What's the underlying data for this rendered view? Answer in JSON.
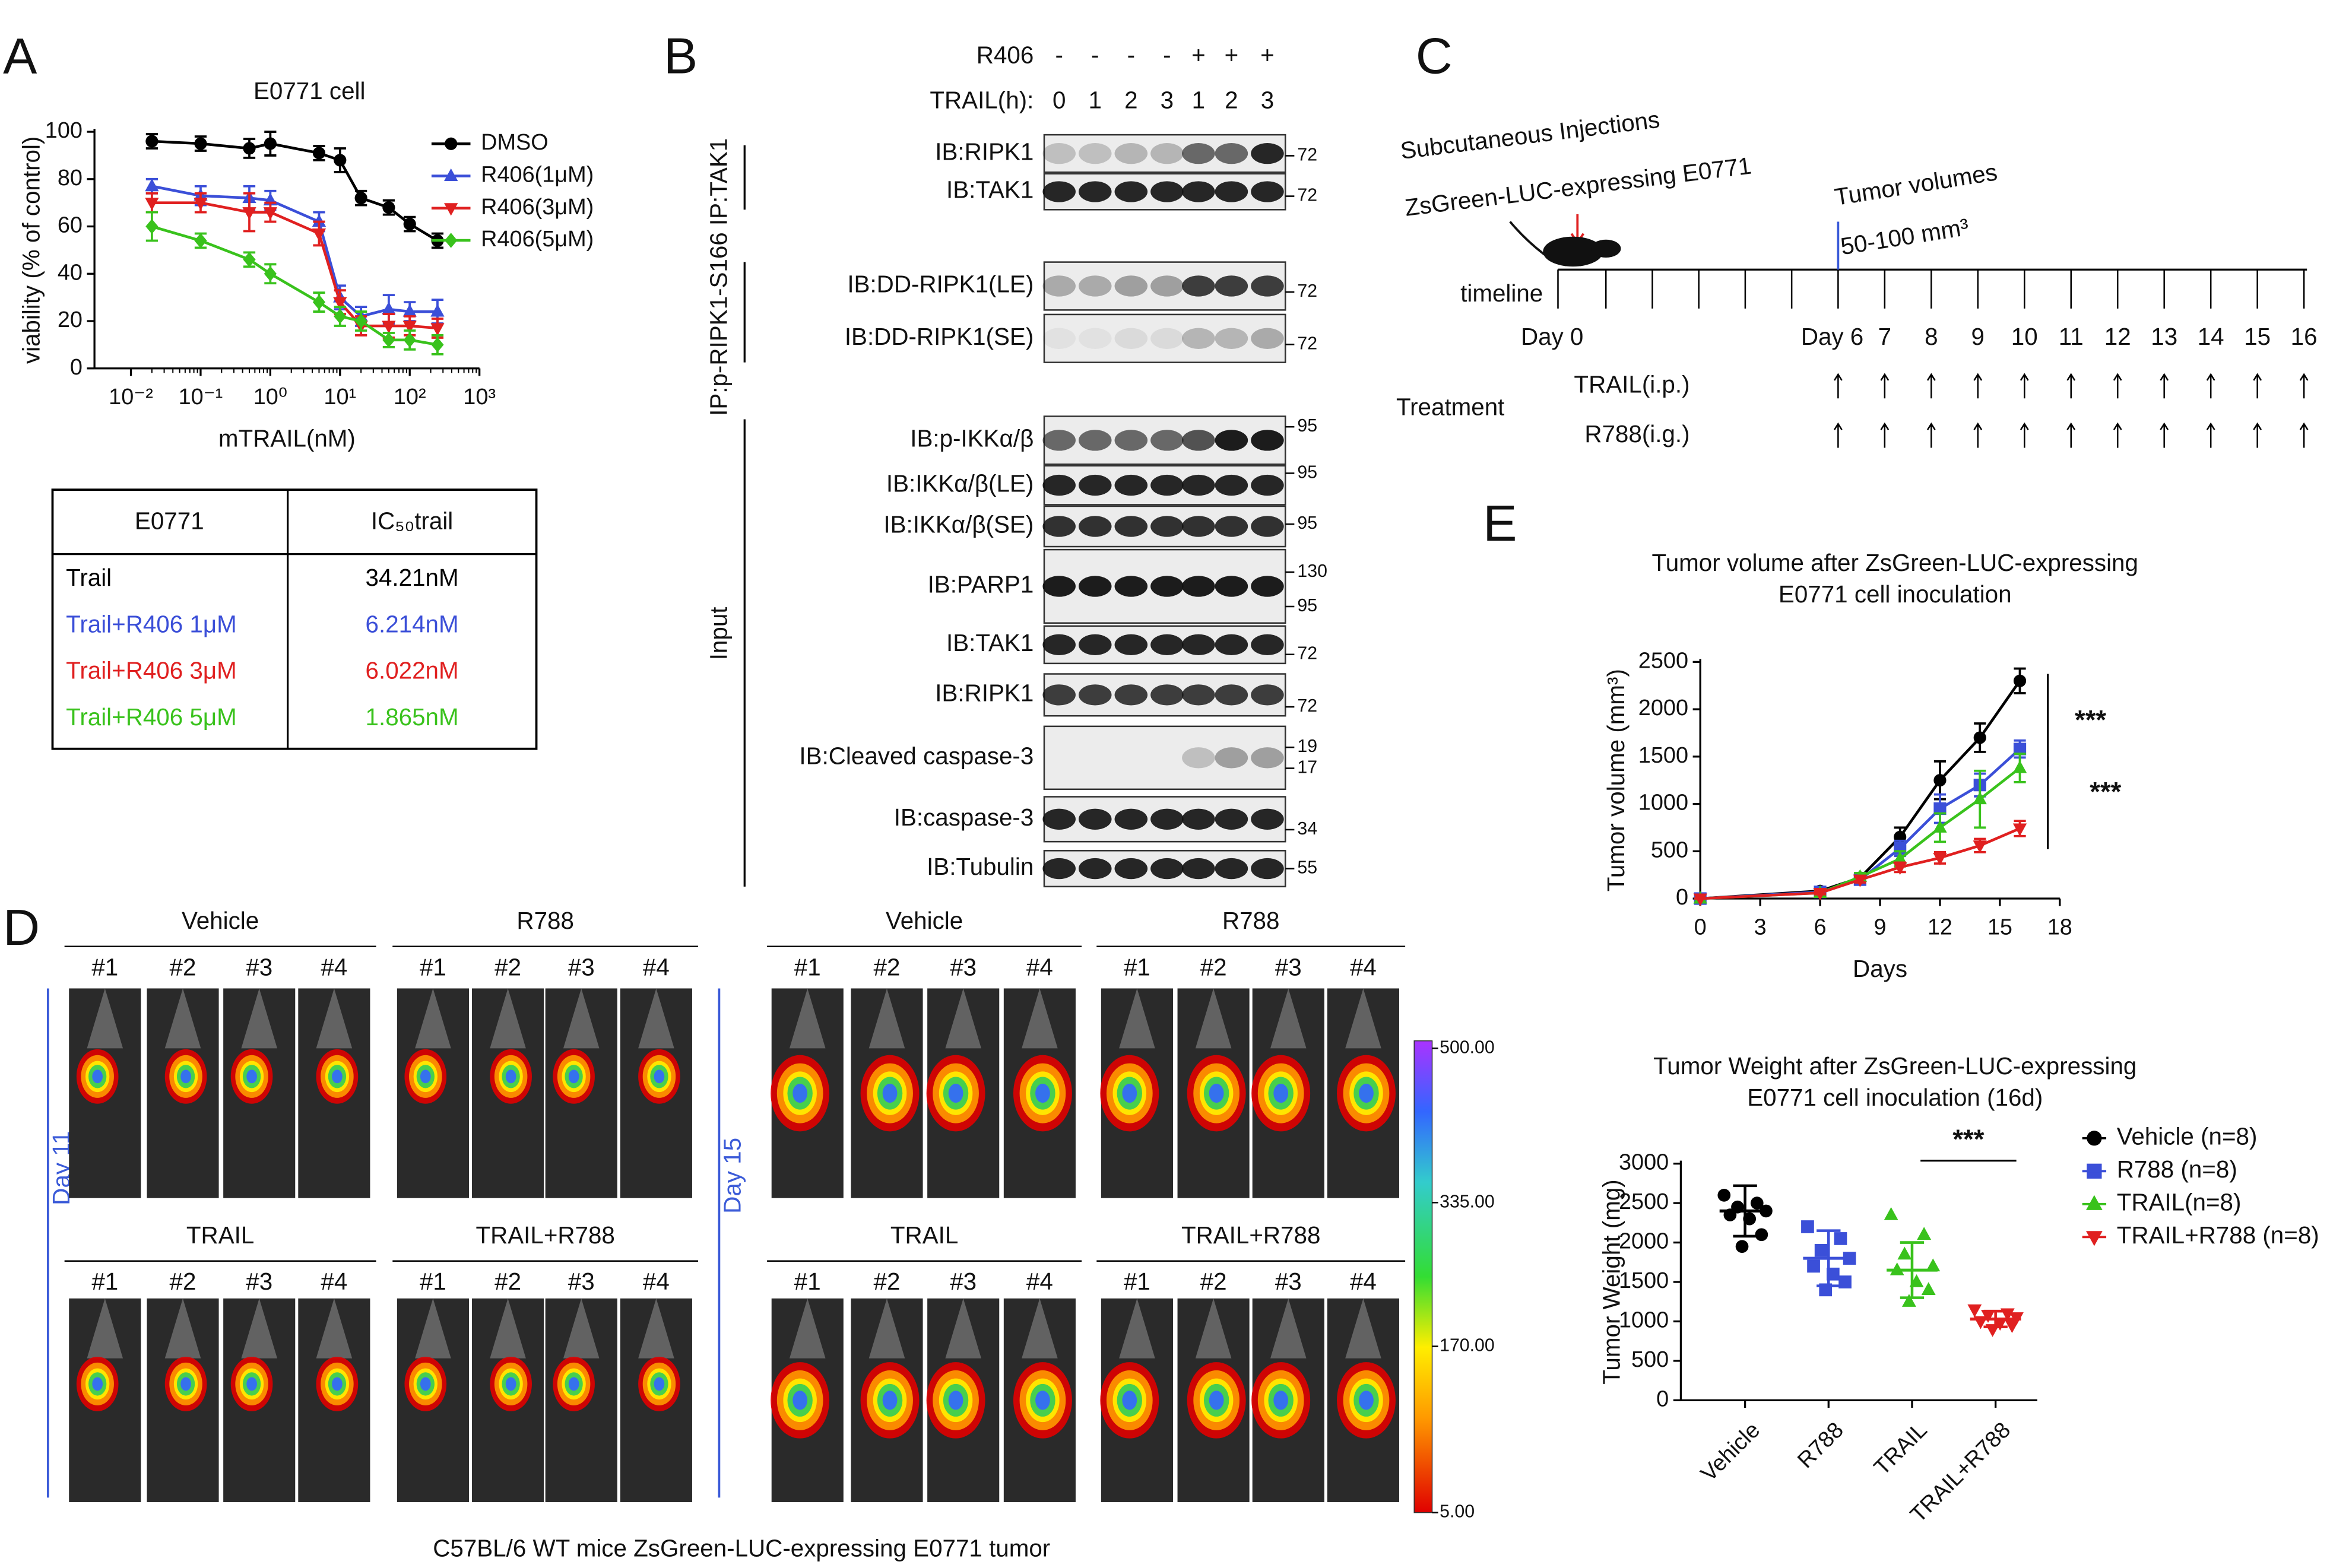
{
  "panel_labels": [
    "A",
    "B",
    "C",
    "D",
    "E"
  ],
  "chart_data": [
    {
      "type": "line",
      "title": "E0771 cell",
      "x_label": "mTRAIL(nM)",
      "y_label": "viability (% of control)",
      "x_scale": "log",
      "xlim": [
        0.003,
        1000
      ],
      "xticks": [
        {
          "value": 0.01,
          "label": "10⁻²"
        },
        {
          "value": 0.1,
          "label": "10⁻¹"
        },
        {
          "value": 1,
          "label": "10⁰"
        },
        {
          "value": 10,
          "label": "10¹"
        },
        {
          "value": 100,
          "label": "10²"
        },
        {
          "value": 1000,
          "label": "10³"
        }
      ],
      "ylim": [
        0,
        100
      ],
      "yticks": [
        0,
        20,
        40,
        60,
        80,
        100
      ],
      "legend": "upper right",
      "x": [
        0.02,
        0.1,
        0.5,
        1,
        5,
        10,
        20,
        50,
        100,
        250
      ],
      "series": [
        {
          "name": "DMSO",
          "color": "#000000",
          "marker": "circle",
          "values": [
            96,
            95,
            93,
            95,
            91,
            88,
            72,
            68,
            61,
            54
          ],
          "errors": [
            3,
            3,
            4,
            5,
            3,
            5,
            3,
            3,
            3,
            3
          ]
        },
        {
          "name": "R406(1μM)",
          "color": "#3b4fd8",
          "marker": "triangle",
          "values": [
            77,
            73,
            72,
            71,
            62,
            30,
            22,
            25,
            24,
            24
          ],
          "errors": [
            3,
            4,
            5,
            4,
            4,
            5,
            4,
            6,
            4,
            5
          ]
        },
        {
          "name": "R406(3μM)",
          "color": "#e02020",
          "marker": "triangle-down",
          "values": [
            70,
            70,
            66,
            66,
            57,
            28,
            18,
            18,
            18,
            17
          ],
          "errors": [
            4,
            4,
            8,
            4,
            5,
            5,
            4,
            5,
            4,
            4
          ]
        },
        {
          "name": "R406(5μM)",
          "color": "#39c21c",
          "marker": "diamond",
          "values": [
            60,
            54,
            46,
            40,
            28,
            22,
            20,
            12,
            12,
            10
          ],
          "errors": [
            6,
            3,
            3,
            4,
            4,
            4,
            4,
            3,
            4,
            4
          ]
        }
      ]
    },
    {
      "type": "line",
      "title": [
        "Tumor volume after ZsGreen-LUC-expressing",
        "E0771 cell inoculation"
      ],
      "x_label": "Days",
      "y_label": "Tumor volume (mm³)",
      "xlim": [
        0,
        18
      ],
      "xticks": [
        0,
        3,
        6,
        9,
        12,
        15,
        18
      ],
      "ylim": [
        0,
        2500
      ],
      "yticks": [
        0,
        500,
        1000,
        1500,
        2000,
        2500
      ],
      "x": [
        0,
        6,
        8,
        10,
        12,
        14,
        16
      ],
      "series": [
        {
          "color": "#000000",
          "marker": "circle",
          "values": [
            0,
            80,
            220,
            650,
            1250,
            1700,
            2300
          ],
          "errors": [
            0,
            20,
            50,
            100,
            200,
            150,
            130
          ]
        },
        {
          "color": "#3b4fd8",
          "marker": "square",
          "values": [
            0,
            70,
            200,
            530,
            950,
            1200,
            1580
          ],
          "errors": [
            0,
            20,
            40,
            80,
            150,
            120,
            90
          ]
        },
        {
          "color": "#39c21c",
          "marker": "triangle",
          "values": [
            0,
            60,
            230,
            420,
            750,
            1050,
            1380
          ],
          "errors": [
            0,
            20,
            40,
            80,
            150,
            300,
            150
          ]
        },
        {
          "color": "#e02020",
          "marker": "triangle-down",
          "values": [
            0,
            60,
            200,
            330,
            430,
            560,
            740
          ],
          "errors": [
            0,
            15,
            30,
            50,
            60,
            70,
            80
          ]
        }
      ],
      "annotations": [
        "***",
        "***"
      ]
    },
    {
      "type": "scatter",
      "title": [
        "Tumor Weight after ZsGreen-LUC-expressing",
        "E0771 cell inoculation (16d)"
      ],
      "y_label": "Tumor Weight (mg)",
      "categories": [
        "Vehicle",
        "R788",
        "TRAIL",
        "TRAIL+R788"
      ],
      "ylim": [
        0,
        3000
      ],
      "yticks": [
        0,
        500,
        1000,
        1500,
        2000,
        2500,
        3000
      ],
      "legend": "right",
      "series": [
        {
          "name": "Vehicle (n=8)",
          "color": "#000000",
          "marker": "circle",
          "values": [
            2600,
            2500,
            2450,
            2400,
            2350,
            2300,
            2100,
            1950
          ],
          "mean": 2400,
          "sd": 320
        },
        {
          "name": "R788 (n=8)",
          "color": "#3b4fd8",
          "marker": "square",
          "values": [
            2200,
            2050,
            1900,
            1800,
            1700,
            1600,
            1500,
            1400
          ],
          "mean": 1800,
          "sd": 350
        },
        {
          "name": "TRAIL(n=8)",
          "color": "#39c21c",
          "marker": "triangle",
          "values": [
            2350,
            2100,
            1850,
            1700,
            1650,
            1500,
            1400,
            1250
          ],
          "mean": 1650,
          "sd": 350
        },
        {
          "name": "TRAIL+R788 (n=8)",
          "color": "#e02020",
          "marker": "triangle-down",
          "values": [
            1150,
            1100,
            1080,
            1050,
            1000,
            980,
            950,
            900
          ],
          "mean": 1030,
          "sd": 100
        }
      ],
      "annotations": [
        "***"
      ]
    }
  ],
  "table": {
    "header": [
      "E0771",
      "IC₅₀trail"
    ],
    "rows": [
      [
        "Trail",
        "34.21nM"
      ],
      [
        "Trail+R406 1μM",
        "6.214nM"
      ],
      [
        "Trail+R406 3μM",
        "6.022nM"
      ],
      [
        "Trail+R406 5μM",
        "1.865nM"
      ]
    ],
    "row_colors": [
      "#000000",
      "#3b4fd8",
      "#e02020",
      "#39c21c"
    ]
  },
  "blot": {
    "conditions": [
      {
        "label": "R406",
        "lanes": [
          "-",
          "-",
          "-",
          "-",
          "+",
          "+",
          "+"
        ]
      },
      {
        "label": "TRAIL(h):",
        "lanes": [
          "0",
          "1",
          "2",
          "3",
          "1",
          "2",
          "3"
        ]
      }
    ],
    "side_labels": [
      "IP:p-RIPK1-S166 IP:TAK1",
      "Input"
    ],
    "panels": [
      {
        "label": "IB:RIPK1",
        "mw": [
          "72"
        ]
      },
      {
        "label": "IB:TAK1",
        "mw": [
          "72"
        ]
      },
      {
        "label": "IB:DD-RIPK1(LE)",
        "mw": [
          "72"
        ]
      },
      {
        "label": "IB:DD-RIPK1(SE)",
        "mw": [
          "72"
        ]
      },
      {
        "label": "IB:p-IKKα/β",
        "mw": [
          "95"
        ]
      },
      {
        "label": "IB:IKKα/β(LE)",
        "mw": [
          "95"
        ]
      },
      {
        "label": "IB:IKKα/β(SE)",
        "mw": [
          "95"
        ]
      },
      {
        "label": "IB:PARP1",
        "mw": [
          "130",
          "95"
        ]
      },
      {
        "label": "IB:TAK1",
        "mw": [
          "72"
        ]
      },
      {
        "label": "IB:RIPK1",
        "mw": [
          "72"
        ]
      },
      {
        "label": "IB:Cleaved caspase-3",
        "mw": [
          "19",
          "17"
        ]
      },
      {
        "label": "IB:caspase-3",
        "mw": [
          "34"
        ]
      },
      {
        "label": "IB:Tubulin",
        "mw": [
          "55"
        ]
      }
    ]
  },
  "schedule": {
    "injection": [
      "Subcutaneous Injections",
      "ZsGreen-LUC-expressing E0771"
    ],
    "tumor_volume": [
      "Tumor volumes",
      "50-100 mm³"
    ],
    "timeline_label": "timeline",
    "days": [
      "Day 0",
      "Day 6",
      "7",
      "8",
      "9",
      "10",
      "11",
      "12",
      "13",
      "14",
      "15",
      "16"
    ],
    "treatment_label": "Treatment",
    "treatments": [
      "TRAIL(i.p.)",
      "R788(i.g.)"
    ]
  },
  "imaging": {
    "days": [
      "Day 11",
      "Day 15"
    ],
    "groups": [
      [
        "Vehicle",
        "R788"
      ],
      [
        "TRAIL",
        "TRAIL+R788"
      ]
    ],
    "mice": [
      "#1",
      "#2",
      "#3",
      "#4"
    ],
    "colorbar": [
      "500.00",
      "335.00",
      "170.00",
      "5.00"
    ],
    "caption": "C57BL/6 WT mice ZsGreen-LUC-expressing E0771 tumor"
  }
}
